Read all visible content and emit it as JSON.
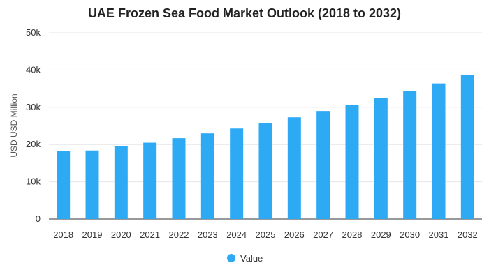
{
  "chart_data": {
    "type": "bar",
    "title": "UAE Frozen Sea Food Market Outlook (2018 to 2032)",
    "xlabel": "",
    "ylabel": "USD USD Million",
    "categories": [
      "2018",
      "2019",
      "2020",
      "2021",
      "2022",
      "2023",
      "2024",
      "2025",
      "2026",
      "2027",
      "2028",
      "2029",
      "2030",
      "2031",
      "2032"
    ],
    "series": [
      {
        "name": "Value",
        "values": [
          18300,
          18400,
          19500,
          20500,
          21700,
          23000,
          24300,
          25800,
          27300,
          29000,
          30600,
          32400,
          34300,
          36400,
          38600
        ]
      }
    ],
    "ylim": [
      0,
      50000
    ],
    "yticks": [
      0,
      10000,
      20000,
      30000,
      40000,
      50000
    ],
    "ytick_labels": [
      "0",
      "10k",
      "20k",
      "30k",
      "40k",
      "50k"
    ],
    "grid": true,
    "legend_position": "bottom",
    "colors": {
      "bar": "#2eaaf5",
      "grid": "#e6e6e6",
      "axis": "#333333"
    }
  }
}
